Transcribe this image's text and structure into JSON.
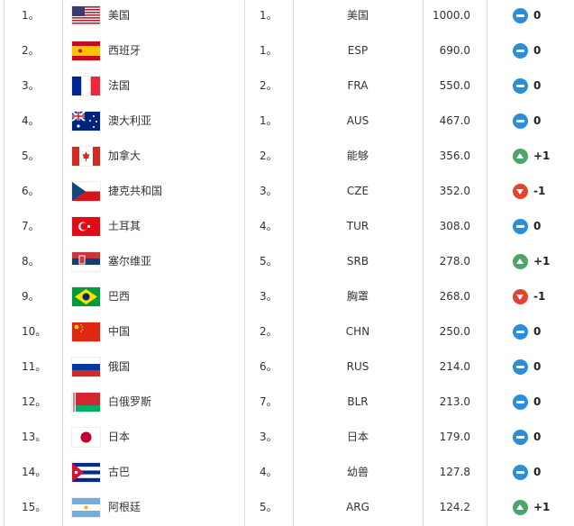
{
  "colors": {
    "same": "#2a8fd8",
    "up": "#4ea56b",
    "down": "#e5432f"
  },
  "rows": [
    {
      "rank": "1。",
      "flag": "usa",
      "name": "美国",
      "zone_rank": "1。",
      "code": "美国",
      "points": "1000.0",
      "trend": "same",
      "change": "0"
    },
    {
      "rank": "2。",
      "flag": "esp",
      "name": "西班牙",
      "zone_rank": "1。",
      "code": "ESP",
      "points": "690.0",
      "trend": "same",
      "change": "0"
    },
    {
      "rank": "3。",
      "flag": "fra",
      "name": "法国",
      "zone_rank": "2。",
      "code": "FRA",
      "points": "550.0",
      "trend": "same",
      "change": "0"
    },
    {
      "rank": "4。",
      "flag": "aus",
      "name": "澳大利亚",
      "zone_rank": "1。",
      "code": "AUS",
      "points": "467.0",
      "trend": "same",
      "change": "0"
    },
    {
      "rank": "5。",
      "flag": "can",
      "name": "加拿大",
      "zone_rank": "2。",
      "code": "能够",
      "points": "356.0",
      "trend": "up",
      "change": "+1"
    },
    {
      "rank": "6。",
      "flag": "cze",
      "name": "捷克共和国",
      "zone_rank": "3。",
      "code": "CZE",
      "points": "352.0",
      "trend": "down",
      "change": "-1"
    },
    {
      "rank": "7。",
      "flag": "tur",
      "name": "土耳其",
      "zone_rank": "4。",
      "code": "TUR",
      "points": "308.0",
      "trend": "same",
      "change": "0"
    },
    {
      "rank": "8。",
      "flag": "srb",
      "name": "塞尔维亚",
      "zone_rank": "5。",
      "code": "SRB",
      "points": "278.0",
      "trend": "up",
      "change": "+1"
    },
    {
      "rank": "9。",
      "flag": "bra",
      "name": "巴西",
      "zone_rank": "3。",
      "code": "胸罩",
      "points": "268.0",
      "trend": "down",
      "change": "-1"
    },
    {
      "rank": "10。",
      "flag": "chn",
      "name": "中国",
      "zone_rank": "2。",
      "code": "CHN",
      "points": "250.0",
      "trend": "same",
      "change": "0"
    },
    {
      "rank": "11。",
      "flag": "rus",
      "name": "俄国",
      "zone_rank": "6。",
      "code": "RUS",
      "points": "214.0",
      "trend": "same",
      "change": "0"
    },
    {
      "rank": "12。",
      "flag": "blr",
      "name": "白俄罗斯",
      "zone_rank": "7。",
      "code": "BLR",
      "points": "213.0",
      "trend": "same",
      "change": "0"
    },
    {
      "rank": "13。",
      "flag": "jpn",
      "name": "日本",
      "zone_rank": "3。",
      "code": "日本",
      "points": "179.0",
      "trend": "same",
      "change": "0"
    },
    {
      "rank": "14。",
      "flag": "cub",
      "name": "古巴",
      "zone_rank": "4。",
      "code": "幼兽",
      "points": "127.8",
      "trend": "same",
      "change": "0"
    },
    {
      "rank": "15。",
      "flag": "arg",
      "name": "阿根廷",
      "zone_rank": "5。",
      "code": "ARG",
      "points": "124.2",
      "trend": "up",
      "change": "+1"
    }
  ]
}
